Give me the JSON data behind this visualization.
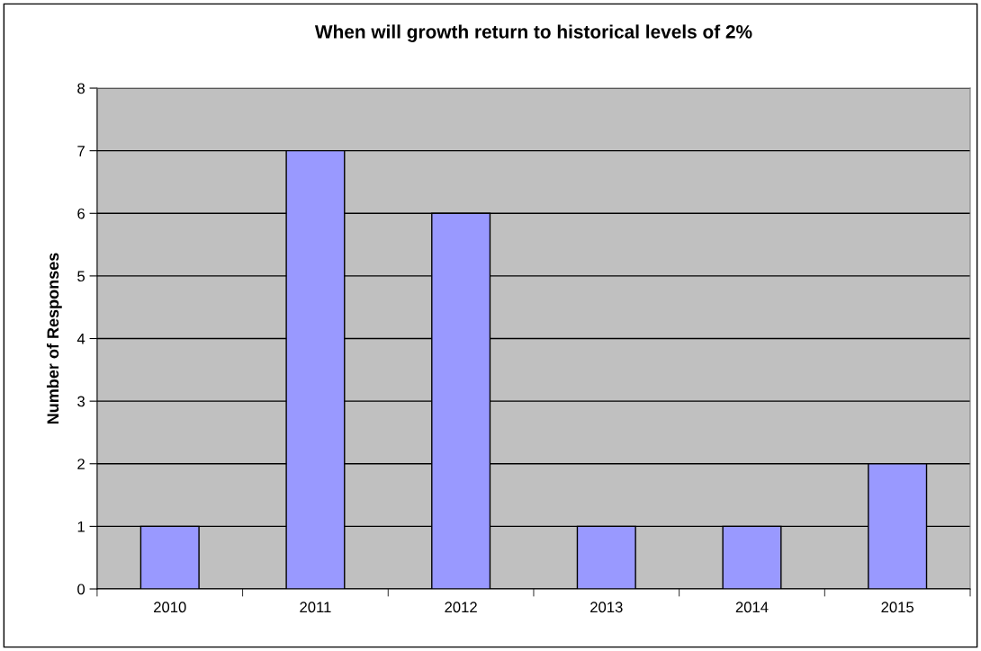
{
  "chart_data": {
    "type": "bar",
    "title": "When will growth return to historical levels of 2%",
    "ylabel": "Number of Responses",
    "categories": [
      "2010",
      "2011",
      "2012",
      "2013",
      "2014",
      "2015"
    ],
    "values": [
      1,
      7,
      6,
      1,
      1,
      2
    ],
    "color": "#9999ff",
    "ylim": [
      0,
      8
    ],
    "yticks": [
      0,
      1,
      2,
      3,
      4,
      5,
      6,
      7,
      8
    ],
    "grid": "y"
  }
}
